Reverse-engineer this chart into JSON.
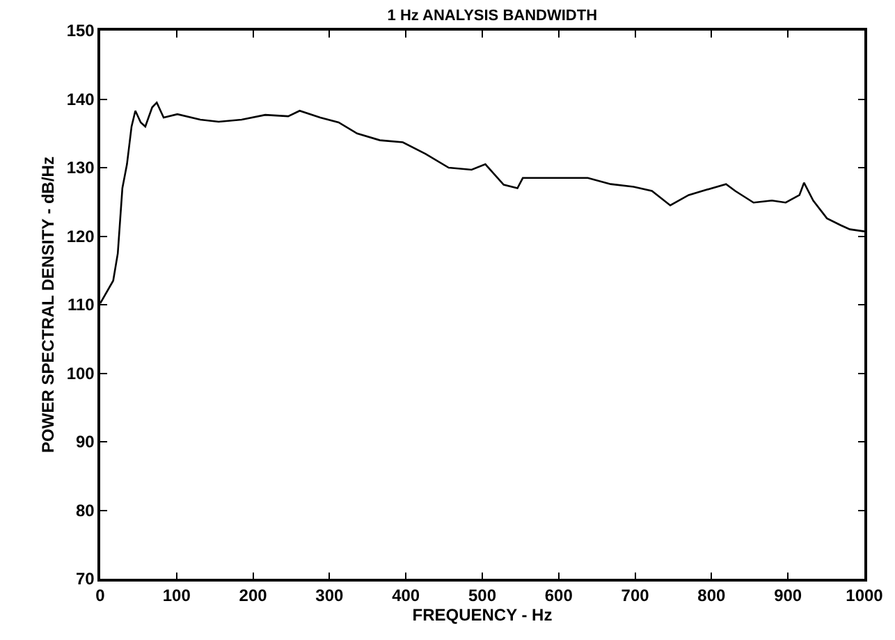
{
  "chart_data": {
    "type": "line",
    "title": "1 Hz ANALYSIS BANDWIDTH",
    "xlabel": "FREQUENCY - Hz",
    "ylabel": "POWER SPECTRAL DENSITY - dB/Hz",
    "x": [
      0,
      17,
      23,
      29,
      35,
      41,
      46,
      53,
      59,
      68,
      74,
      83,
      101,
      131,
      155,
      185,
      216,
      246,
      261,
      288,
      312,
      336,
      366,
      396,
      426,
      456,
      486,
      504,
      528,
      546,
      553,
      577,
      608,
      638,
      668,
      698,
      722,
      746,
      770,
      788,
      819,
      831,
      855,
      879,
      897,
      915,
      921,
      933,
      951,
      969,
      981,
      1000
    ],
    "series": [
      {
        "color": "#000000",
        "values": [
          110.2,
          113.5,
          117.5,
          127,
          130.5,
          136,
          138.3,
          136.6,
          136,
          138.8,
          139.5,
          137.3,
          137.8,
          137,
          136.7,
          137,
          137.7,
          137.5,
          138.3,
          137.3,
          136.6,
          135,
          134,
          133.7,
          132,
          130,
          129.7,
          130.5,
          127.5,
          127,
          128.5,
          128.5,
          128.5,
          128.5,
          127.6,
          127.2,
          126.6,
          124.5,
          126,
          126.6,
          127.6,
          126.6,
          124.9,
          125.2,
          124.9,
          126,
          127.8,
          125.2,
          122.6,
          121.6,
          121,
          120.7
        ]
      }
    ],
    "xlim": [
      0,
      1000
    ],
    "xticks": [
      0,
      100,
      200,
      300,
      400,
      500,
      600,
      700,
      800,
      900,
      1000
    ],
    "ylim": [
      70,
      150
    ],
    "yticks": [
      70,
      80,
      90,
      100,
      110,
      120,
      130,
      140,
      150
    ],
    "grid": false,
    "marker": "none",
    "line_style": "solid"
  }
}
